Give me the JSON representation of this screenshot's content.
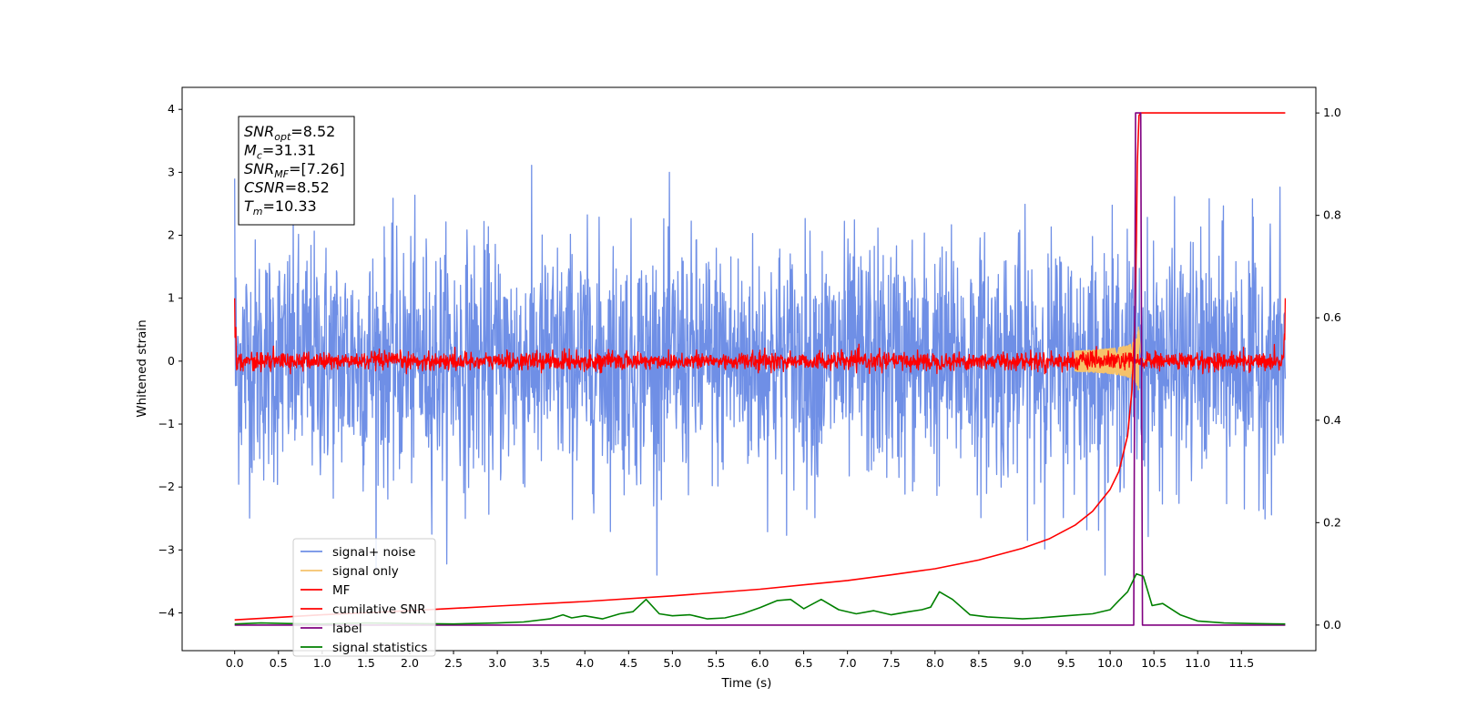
{
  "chart_data": {
    "type": "line",
    "title": "",
    "xlabel": "Time (s)",
    "ylabel": "Whitened strain",
    "y2label": "",
    "xlim": [
      -0.6,
      12.35
    ],
    "ylim": [
      -4.6,
      4.35
    ],
    "y2lim": [
      -0.05,
      1.05
    ],
    "xticks": [
      "0.0",
      "0.5",
      "1.0",
      "1.5",
      "2.0",
      "2.5",
      "3.0",
      "3.5",
      "4.0",
      "4.5",
      "5.0",
      "5.5",
      "6.0",
      "6.5",
      "7.0",
      "7.5",
      "8.0",
      "8.5",
      "9.0",
      "9.5",
      "10.0",
      "10.5",
      "11.0",
      "11.5"
    ],
    "yticks": [
      "4",
      "3",
      "2",
      "1",
      "0",
      "−1",
      "−2",
      "−3",
      "−4"
    ],
    "y2ticks": [
      "1.0",
      "0.8",
      "0.6",
      "0.4",
      "0.2",
      "0.0"
    ],
    "grid": false,
    "legend_position": "lower-left",
    "stats_box": {
      "lines": [
        {
          "base": "SNR",
          "sub": "opt",
          "value": "=8.52"
        },
        {
          "base": "M",
          "sub": "c",
          "value": "=31.31"
        },
        {
          "base": "SNR",
          "sub": "MF",
          "value": "=[7.26]"
        },
        {
          "base": "CSNR",
          "sub": "",
          "value": "=8.52"
        },
        {
          "base": "T",
          "sub": "m",
          "value": "=10.33"
        }
      ]
    },
    "series": [
      {
        "name": "signal+ noise",
        "color": "#6f8fe6",
        "axis": "left",
        "kind": "noise",
        "x_range": [
          0,
          12
        ],
        "amplitude_sigma": 1.0,
        "observed_range": [
          -3.4,
          4.0
        ]
      },
      {
        "name": "signal only",
        "color": "#f5c26b",
        "axis": "left",
        "kind": "chirp",
        "x_range": [
          0,
          12
        ],
        "peak_time": 10.33,
        "peak_amplitude": 0.6
      },
      {
        "name": "MF",
        "color": "#ff0000",
        "axis": "left",
        "kind": "noise",
        "x_range": [
          0,
          12
        ],
        "amplitude_sigma": 0.07,
        "observed_range": [
          -0.2,
          1.0
        ]
      },
      {
        "name": "cumilative SNR",
        "color": "#ff0000",
        "axis": "right",
        "points": [
          [
            0,
            0.01
          ],
          [
            0.5,
            0.015
          ],
          [
            1,
            0.02
          ],
          [
            2,
            0.028
          ],
          [
            3,
            0.037
          ],
          [
            4,
            0.046
          ],
          [
            5,
            0.057
          ],
          [
            6,
            0.07
          ],
          [
            7,
            0.087
          ],
          [
            7.5,
            0.098
          ],
          [
            8,
            0.11
          ],
          [
            8.5,
            0.127
          ],
          [
            9,
            0.15
          ],
          [
            9.3,
            0.168
          ],
          [
            9.6,
            0.195
          ],
          [
            9.8,
            0.222
          ],
          [
            10,
            0.265
          ],
          [
            10.1,
            0.3
          ],
          [
            10.2,
            0.37
          ],
          [
            10.25,
            0.46
          ],
          [
            10.28,
            0.58
          ],
          [
            10.3,
            0.75
          ],
          [
            10.31,
            0.9
          ],
          [
            10.33,
            0.995
          ],
          [
            10.35,
            1.0
          ],
          [
            11,
            1.0
          ],
          [
            12,
            1.0
          ]
        ]
      },
      {
        "name": "label",
        "color": "#800080",
        "axis": "right",
        "points": [
          [
            0,
            0
          ],
          [
            10.27,
            0
          ],
          [
            10.29,
            1.0
          ],
          [
            10.35,
            1.0
          ],
          [
            10.37,
            0
          ],
          [
            12,
            0
          ]
        ]
      },
      {
        "name": "signal statistics",
        "color": "#008000",
        "axis": "right",
        "points": [
          [
            0,
            0.002
          ],
          [
            0.3,
            0.004
          ],
          [
            0.6,
            0.003
          ],
          [
            1,
            0.002
          ],
          [
            1.5,
            0.004
          ],
          [
            2,
            0.003
          ],
          [
            2.5,
            0.002
          ],
          [
            3,
            0.004
          ],
          [
            3.3,
            0.006
          ],
          [
            3.6,
            0.012
          ],
          [
            3.75,
            0.02
          ],
          [
            3.85,
            0.014
          ],
          [
            4.0,
            0.018
          ],
          [
            4.2,
            0.012
          ],
          [
            4.4,
            0.022
          ],
          [
            4.55,
            0.026
          ],
          [
            4.7,
            0.05
          ],
          [
            4.85,
            0.022
          ],
          [
            5.0,
            0.018
          ],
          [
            5.2,
            0.02
          ],
          [
            5.4,
            0.012
          ],
          [
            5.6,
            0.014
          ],
          [
            5.8,
            0.022
          ],
          [
            6.0,
            0.034
          ],
          [
            6.2,
            0.048
          ],
          [
            6.35,
            0.05
          ],
          [
            6.5,
            0.032
          ],
          [
            6.7,
            0.05
          ],
          [
            6.9,
            0.03
          ],
          [
            7.1,
            0.022
          ],
          [
            7.3,
            0.028
          ],
          [
            7.5,
            0.02
          ],
          [
            7.7,
            0.026
          ],
          [
            7.85,
            0.03
          ],
          [
            7.95,
            0.035
          ],
          [
            8.05,
            0.065
          ],
          [
            8.2,
            0.05
          ],
          [
            8.4,
            0.02
          ],
          [
            8.6,
            0.016
          ],
          [
            8.8,
            0.014
          ],
          [
            9.0,
            0.012
          ],
          [
            9.2,
            0.014
          ],
          [
            9.5,
            0.018
          ],
          [
            9.8,
            0.022
          ],
          [
            10.0,
            0.03
          ],
          [
            10.1,
            0.048
          ],
          [
            10.2,
            0.065
          ],
          [
            10.3,
            0.1
          ],
          [
            10.38,
            0.095
          ],
          [
            10.48,
            0.038
          ],
          [
            10.6,
            0.042
          ],
          [
            10.8,
            0.02
          ],
          [
            11.0,
            0.008
          ],
          [
            11.3,
            0.004
          ],
          [
            11.6,
            0.003
          ],
          [
            12.0,
            0.002
          ]
        ]
      }
    ]
  }
}
